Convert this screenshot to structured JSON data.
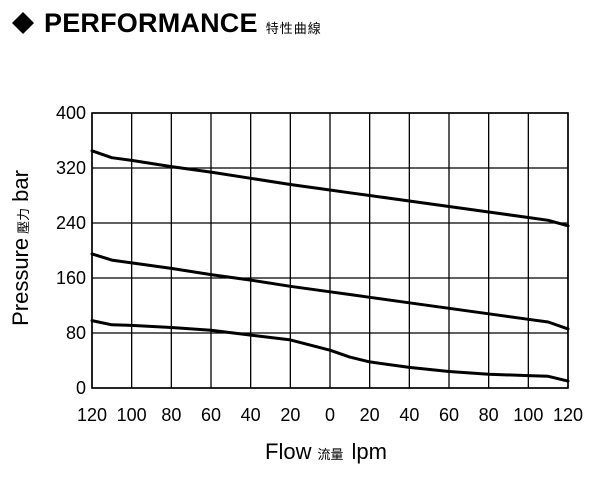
{
  "header": {
    "title": "PERFORMANCE",
    "subtitle": "特性曲線"
  },
  "chart_data": {
    "type": "line",
    "title": "PERFORMANCE",
    "subtitle": "特性曲線",
    "xlabel": "Flow",
    "xlabel_cjk": "流量",
    "xlabel_unit": "lpm",
    "ylabel": "Pressure",
    "ylabel_cjk": "壓力",
    "ylabel_unit": "bar",
    "x_tick_labels": [
      "120",
      "100",
      "80",
      "60",
      "40",
      "20",
      "0",
      "20",
      "40",
      "60",
      "80",
      "100",
      "120"
    ],
    "y_ticks": [
      0,
      80,
      160,
      240,
      320,
      400
    ],
    "ylim": [
      0,
      400
    ],
    "grid": true,
    "x": [
      -120,
      -110,
      -100,
      -80,
      -60,
      -40,
      -20,
      0,
      10,
      20,
      40,
      60,
      80,
      100,
      110,
      120
    ],
    "series": [
      {
        "values": [
          345,
          335,
          331,
          322,
          314,
          305,
          296,
          288,
          284,
          280,
          272,
          264,
          256,
          248,
          244,
          236
        ]
      },
      {
        "values": [
          195,
          186,
          182,
          174,
          165,
          157,
          148,
          140,
          136,
          132,
          124,
          116,
          108,
          100,
          96,
          86
        ]
      },
      {
        "values": [
          98,
          92,
          91,
          88,
          84,
          77,
          70,
          55,
          45,
          38,
          30,
          24,
          20,
          18,
          17,
          10
        ]
      }
    ]
  }
}
